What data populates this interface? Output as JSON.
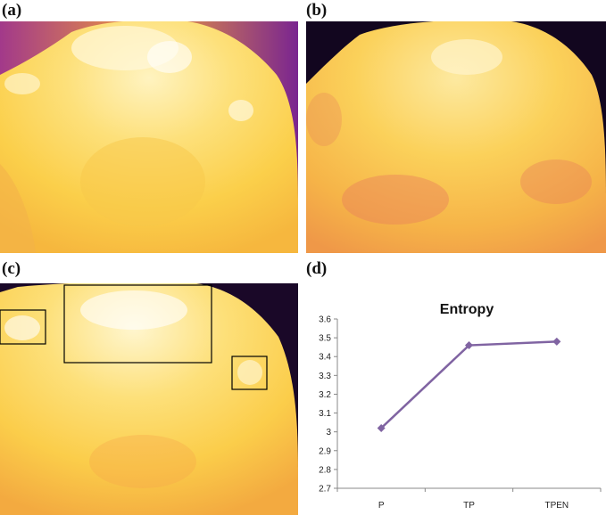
{
  "panels": {
    "a": {
      "label": "(a)"
    },
    "b": {
      "label": "(b)"
    },
    "c": {
      "label": "(c)"
    },
    "d": {
      "label": "(d)"
    }
  },
  "colors": {
    "line": "#8064a2",
    "marker": "#8064a2",
    "axis": "#888888",
    "thermal_hot": "#fff6c8",
    "thermal_warm": "#fbd24a",
    "thermal_mid": "#f3a63a",
    "thermal_cool": "#8a2b8c",
    "thermal_cold": "#160826"
  },
  "chart_data": {
    "type": "line",
    "title": "Entropy",
    "categories": [
      "P",
      "TP",
      "TPEN"
    ],
    "series": [
      {
        "values": [
          3.02,
          3.46,
          3.48
        ]
      }
    ],
    "ylim": [
      2.7,
      3.6
    ],
    "yticks": [
      "2.7",
      "2.8",
      "2.9",
      "3",
      "3.1",
      "3.2",
      "3.3",
      "3.4",
      "3.5",
      "3.6"
    ],
    "grid": false,
    "legend": "none"
  }
}
